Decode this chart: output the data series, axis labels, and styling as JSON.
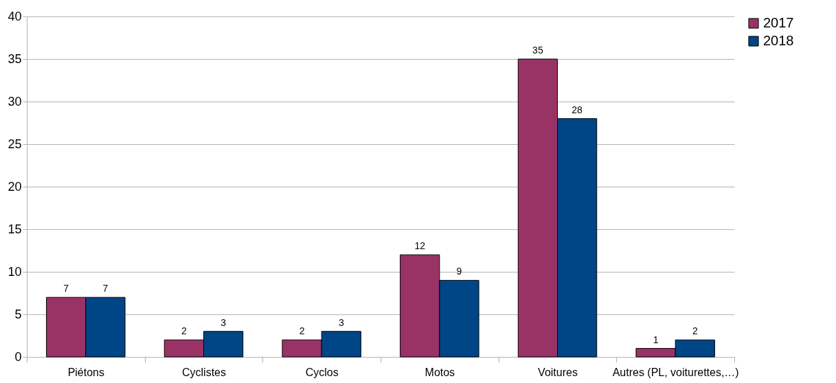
{
  "chart_data": {
    "type": "bar",
    "categories": [
      "Piétons",
      "Cyclistes",
      "Cyclos",
      "Motos",
      "Voitures",
      "Autres (PL, voiturettes,…)"
    ],
    "series": [
      {
        "name": "2017",
        "color": "#993366",
        "values": [
          7,
          2,
          2,
          12,
          35,
          1
        ]
      },
      {
        "name": "2018",
        "color": "#004586",
        "values": [
          7,
          3,
          3,
          9,
          28,
          2
        ]
      }
    ],
    "ylim": [
      0,
      40
    ],
    "yticks": [
      0,
      5,
      10,
      15,
      20,
      25,
      30,
      35,
      40
    ],
    "grid": "y",
    "legend": "right",
    "data_labels": true
  }
}
